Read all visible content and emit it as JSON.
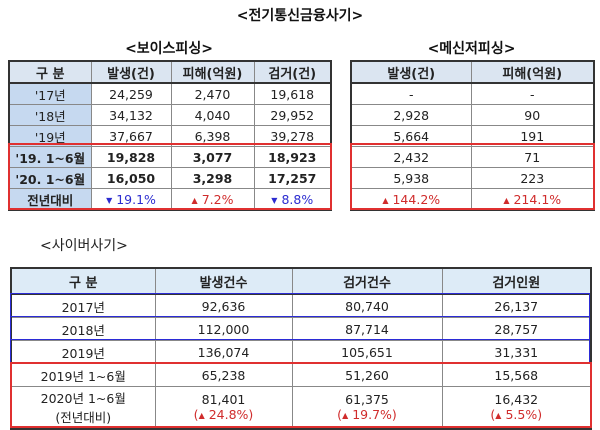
{
  "title": "<전기통신금융사기>",
  "voice": {
    "label": "<보이스피싱>",
    "headers": [
      "구  분",
      "발생(건)",
      "피해(억원)",
      "검거(건)"
    ],
    "rows": [
      [
        "'17년",
        "24,259",
        "2,470",
        "19,618"
      ],
      [
        "'18년",
        "34,132",
        "4,040",
        "29,952"
      ],
      [
        "'19년",
        "37,667",
        "6,398",
        "39,278"
      ],
      [
        "'19. 1~6월",
        "19,828",
        "3,077",
        "18,923"
      ],
      [
        "'20. 1~6월",
        "16,050",
        "3,298",
        "17,257"
      ]
    ],
    "change": {
      "label": "전년대비",
      "values": [
        "19.1%",
        "7.2%",
        "8.8%"
      ],
      "directions": [
        "down",
        "up",
        "down"
      ]
    }
  },
  "messenger": {
    "label": "<메신저피싱>",
    "headers": [
      "발생(건)",
      "피해(억원)"
    ],
    "rows": [
      [
        "-",
        "-"
      ],
      [
        "2,928",
        "90"
      ],
      [
        "5,664",
        "191"
      ],
      [
        "2,432",
        "71"
      ],
      [
        "5,938",
        "223"
      ]
    ],
    "change": {
      "values": [
        "144.2%",
        "214.1%"
      ],
      "directions": [
        "up",
        "up"
      ]
    }
  },
  "cyber": {
    "label": "<사이버사기>",
    "headers": [
      "구 분",
      "발생건수",
      "검거건수",
      "검거인원"
    ],
    "rows": [
      [
        "2017년",
        "92,636",
        "80,740",
        "26,137"
      ],
      [
        "2018년",
        "112,000",
        "87,714",
        "28,757"
      ],
      [
        "2019년",
        "136,074",
        "105,651",
        "31,331"
      ],
      [
        "2019년 1~6월",
        "65,238",
        "51,260",
        "15,568"
      ]
    ],
    "last": {
      "label": "2020년 1~6월",
      "sublabel": "(전년대비)",
      "values": [
        "81,401",
        "61,375",
        "16,432"
      ],
      "changes": [
        "24.8%",
        "19.7%",
        "5.5%"
      ]
    }
  },
  "colors": {
    "up": "#d02c2c",
    "down": "#2c2cd0",
    "highlight_red": "#e03030",
    "highlight_blue": "#2b2bd6"
  }
}
